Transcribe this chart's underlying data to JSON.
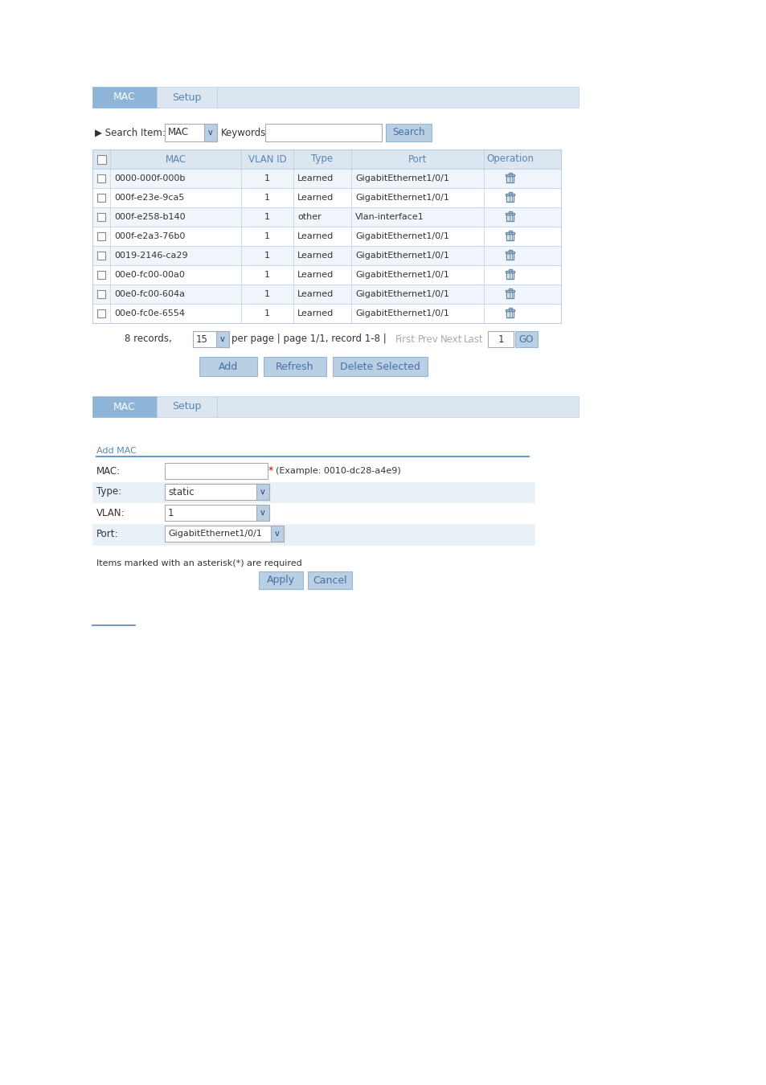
{
  "tab1_color": "#8eb4d8",
  "tab2_color": "#dce6f1",
  "tab_text_color": "#ffffff",
  "tab2_text_color": "#5b86b0",
  "header_bg": "#dce6f1",
  "row_bg_even": "#ffffff",
  "row_bg_odd": "#f0f5fb",
  "border_color": "#b8cfe4",
  "header_text_color": "#5b86b0",
  "cell_text_color": "#333333",
  "button_color": "#b8cfe4",
  "button_text_color": "#4a6fa5",
  "fig_bg": "#ffffff",
  "mac_data": [
    [
      "0000-000f-000b",
      "1",
      "Learned",
      "GigabitEthernet1/0/1"
    ],
    [
      "000f-e23e-9ca5",
      "1",
      "Learned",
      "GigabitEthernet1/0/1"
    ],
    [
      "000f-e258-b140",
      "1",
      "other",
      "Vlan-interface1"
    ],
    [
      "000f-e2a3-76b0",
      "1",
      "Learned",
      "GigabitEthernet1/0/1"
    ],
    [
      "0019-2146-ca29",
      "1",
      "Learned",
      "GigabitEthernet1/0/1"
    ],
    [
      "00e0-fc00-00a0",
      "1",
      "Learned",
      "GigabitEthernet1/0/1"
    ],
    [
      "00e0-fc00-604a",
      "1",
      "Learned",
      "GigabitEthernet1/0/1"
    ],
    [
      "00e0-fc0e-6554",
      "1",
      "Learned",
      "GigabitEthernet1/0/1"
    ]
  ],
  "form_fields": [
    {
      "label": "MAC:",
      "type": "input",
      "value": "",
      "note": "*(Example: 0010-dc28-a4e9)"
    },
    {
      "label": "Type:",
      "type": "dropdown",
      "value": "static"
    },
    {
      "label": "VLAN:",
      "type": "dropdown",
      "value": "1"
    },
    {
      "label": "Port:",
      "type": "dropdown",
      "value": "GigabitEthernet1/0/1"
    }
  ],
  "form_note": "Items marked with an asterisk(*) are required",
  "form_buttons": [
    "Apply",
    "Cancel"
  ]
}
